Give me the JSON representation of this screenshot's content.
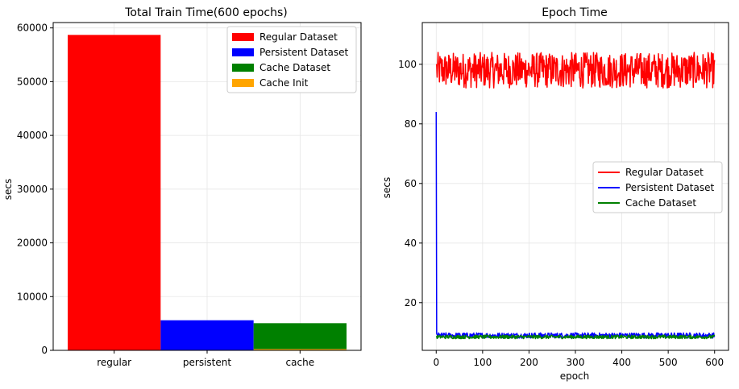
{
  "chart_data": [
    {
      "type": "bar",
      "title": "Total Train Time(600 epochs)",
      "xlabel": "",
      "ylabel": "secs",
      "ylim": [
        0,
        61000
      ],
      "yticks": [
        0,
        10000,
        20000,
        30000,
        40000,
        50000,
        60000
      ],
      "categories": [
        "regular",
        "persistent",
        "cache"
      ],
      "stacked": true,
      "grid": true,
      "legend_position": "top-right",
      "series": [
        {
          "name": "Regular Dataset",
          "color": "#ff0000",
          "values": [
            58700,
            0,
            0
          ]
        },
        {
          "name": "Persistent Dataset",
          "color": "#0000ff",
          "values": [
            0,
            5600,
            0
          ]
        },
        {
          "name": "Cache Init",
          "color": "#ffa500",
          "values": [
            0,
            0,
            250
          ]
        },
        {
          "name": "Cache Dataset",
          "color": "#008000",
          "values": [
            0,
            0,
            4800
          ]
        }
      ],
      "legend_order": [
        "Regular Dataset",
        "Persistent Dataset",
        "Cache Dataset",
        "Cache Init"
      ]
    },
    {
      "type": "line",
      "title": "Epoch Time",
      "xlabel": "epoch",
      "ylabel": "secs",
      "xlim": [
        -30,
        630
      ],
      "ylim": [
        4,
        114
      ],
      "xticks": [
        0,
        100,
        200,
        300,
        400,
        500,
        600
      ],
      "yticks": [
        20,
        40,
        60,
        80,
        100
      ],
      "grid": true,
      "legend_position": "center-right",
      "series": [
        {
          "name": "Regular Dataset",
          "color": "#ff0000",
          "generator": "noise",
          "x_range": [
            0,
            600
          ],
          "mean": 98,
          "amplitude": 6,
          "first": 100
        },
        {
          "name": "Persistent Dataset",
          "color": "#0000ff",
          "generator": "noise",
          "x_range": [
            0,
            600
          ],
          "mean": 9,
          "amplitude": 0.9,
          "first": 84
        },
        {
          "name": "Cache Dataset",
          "color": "#008000",
          "generator": "noise",
          "x_range": [
            0,
            600
          ],
          "mean": 8.5,
          "amplitude": 0.6,
          "first": 8.5
        }
      ]
    }
  ]
}
